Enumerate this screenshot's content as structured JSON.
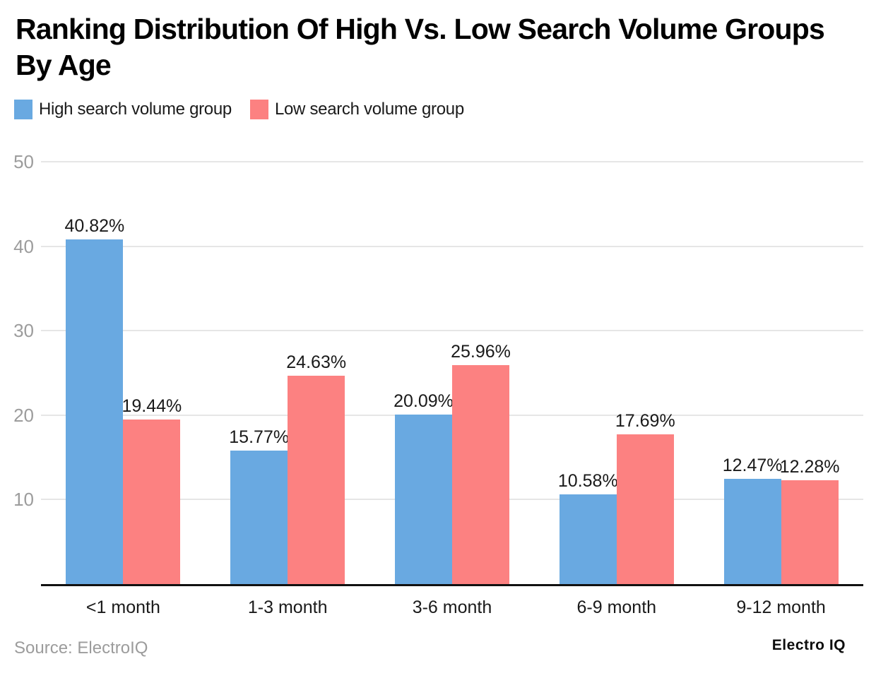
{
  "title": {
    "text": "Ranking Distribution Of High Vs. Low Search Volume Groups By Age",
    "line1": "Ranking Distribution Of High Vs. Low Search Volume Groups",
    "line2": "By Age"
  },
  "legend": {
    "items": [
      {
        "label": "High search volume group",
        "color": "#69a9e1"
      },
      {
        "label": "Low search volume group",
        "color": "#fc8181"
      }
    ]
  },
  "footer": {
    "source": "Source: ElectroIQ",
    "logo": "Electro IQ"
  },
  "colors": {
    "high_series": "#69a9e1",
    "low_series": "#fc8181",
    "grid": "#e6e6e6",
    "axis": "#111111",
    "muted_text": "#9c9c9c",
    "label_text": "#1a1a1a"
  },
  "chart_data": {
    "type": "bar",
    "title": "Ranking Distribution Of High Vs. Low Search Volume Groups By Age",
    "categories": [
      "<1 month",
      "1-3 month",
      "3-6 month",
      "6-9 month",
      "9-12 month"
    ],
    "series": [
      {
        "name": "High search volume group",
        "color": "#69a9e1",
        "values": [
          40.82,
          15.77,
          20.09,
          10.58,
          12.47
        ]
      },
      {
        "name": "Low search volume group",
        "color": "#fc8181",
        "values": [
          19.44,
          24.63,
          25.96,
          17.69,
          12.28
        ]
      }
    ],
    "value_suffix": "%",
    "value_labels_shown": true,
    "xlabel": "",
    "ylabel": "",
    "yticks": [
      10,
      20,
      30,
      40,
      50
    ],
    "ylim": [
      0,
      50
    ],
    "grid": true,
    "legend_position": "top"
  }
}
